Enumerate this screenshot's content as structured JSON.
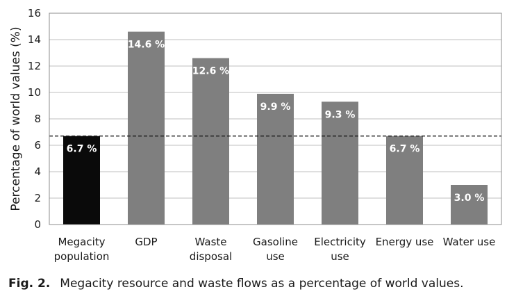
{
  "chart_data": {
    "type": "bar",
    "categories": [
      "Megacity\npopulation",
      "GDP",
      "Waste\ndisposal",
      "Gasoline\nuse",
      "Electricity\nuse",
      "Energy use",
      "Water use"
    ],
    "values": [
      6.7,
      14.6,
      12.6,
      9.9,
      9.3,
      6.7,
      3.0
    ],
    "data_labels": [
      "6.7 %",
      "14.6 %",
      "12.6 %",
      "9.9 %",
      "9.3 %",
      "6.7 %",
      "3.0 %"
    ],
    "bar_colors": [
      "#0a0a0a",
      "#7f7f7f",
      "#7f7f7f",
      "#7f7f7f",
      "#7f7f7f",
      "#7f7f7f",
      "#7f7f7f"
    ],
    "ylabel": "Percentage of world values (%)",
    "ylim": [
      0,
      16
    ],
    "yticks": [
      0,
      2,
      4,
      6,
      8,
      10,
      12,
      14,
      16
    ],
    "reference_line": {
      "value": 6.7,
      "style": "dashed"
    },
    "grid": true
  },
  "caption": {
    "label": "Fig. 2.",
    "text": "Megacity resource and waste flows as a percentage of world values."
  }
}
